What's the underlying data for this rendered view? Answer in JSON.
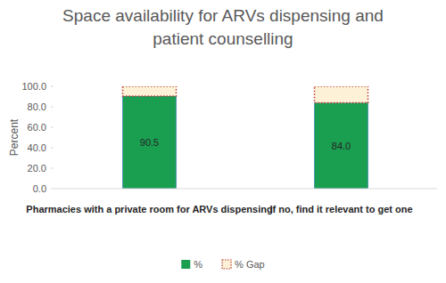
{
  "chart_data": {
    "type": "bar",
    "stacked": true,
    "title": "Space availability for ARVs dispensing and patient counselling",
    "y_label": "Percent",
    "categories": [
      "Pharmacies with a private room for ARVs dispensing",
      "If no, find it relevant to get one"
    ],
    "series": [
      {
        "name": "%",
        "color": "#1a9e50",
        "values": [
          90.5,
          84.0
        ],
        "value_labels": [
          "90.5",
          "84.0"
        ],
        "data_labels": true
      },
      {
        "name": "% Gap",
        "color": "#fdf1d8",
        "line_style": "dotted",
        "values": [
          9.5,
          16.0
        ]
      }
    ],
    "ylim": [
      0,
      100
    ],
    "yticks": [
      {
        "value": 0,
        "label": "0.0"
      },
      {
        "value": 20,
        "label": "20.0"
      },
      {
        "value": 40,
        "label": "40.0"
      },
      {
        "value": 60,
        "label": "60.0"
      },
      {
        "value": 80,
        "label": "80.0"
      },
      {
        "value": 100,
        "label": "100.0"
      }
    ],
    "grid": false,
    "legend": "bottom"
  }
}
